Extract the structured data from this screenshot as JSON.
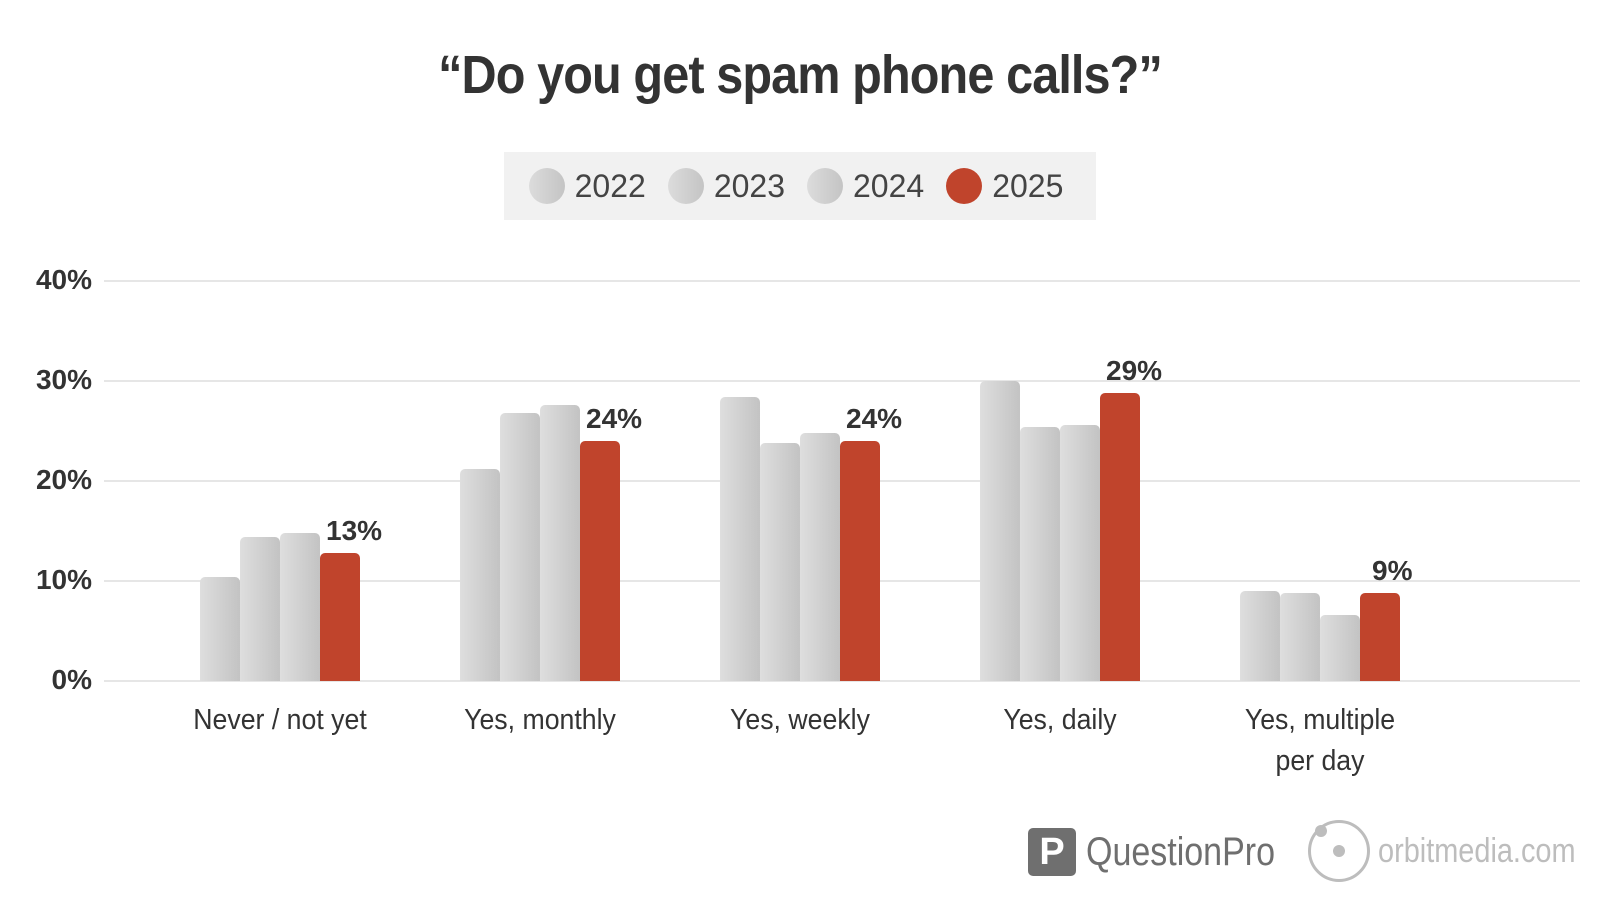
{
  "header": {
    "title": "“Do you get spam phone calls?”"
  },
  "legend": {
    "items": [
      {
        "label": "2022",
        "color": "#cfcfcf"
      },
      {
        "label": "2023",
        "color": "#cfcfcf"
      },
      {
        "label": "2024",
        "color": "#cfcfcf"
      },
      {
        "label": "2025",
        "color": "#c0442c"
      }
    ]
  },
  "axis": {
    "y_ticks": [
      "0%",
      "10%",
      "20%",
      "30%",
      "40%"
    ]
  },
  "categories": [
    {
      "label": "Never / not yet",
      "label2": "",
      "values": [
        10.4,
        14.4,
        14.8,
        12.8
      ],
      "highlight_label": "13%"
    },
    {
      "label": "Yes, monthly",
      "label2": "",
      "values": [
        21.2,
        26.8,
        27.6,
        24.0
      ],
      "highlight_label": "24%"
    },
    {
      "label": "Yes, weekly",
      "label2": "",
      "values": [
        28.4,
        23.8,
        24.8,
        24.0
      ],
      "highlight_label": "24%"
    },
    {
      "label": "Yes, daily",
      "label2": "",
      "values": [
        30.0,
        25.4,
        25.6,
        28.8
      ],
      "highlight_label": "29%"
    },
    {
      "label": "Yes, multiple",
      "label2": "per day",
      "values": [
        9.0,
        8.8,
        6.6,
        8.8
      ],
      "highlight_label": "9%"
    }
  ],
  "footer": {
    "logo1": "QuestionPro",
    "logo1_mark": "P",
    "logo2": "orbitmedia.com"
  },
  "colors": {
    "highlight": "#c0442c",
    "neutral": "#cfcfcf",
    "text": "#333333"
  },
  "chart_data": {
    "type": "bar",
    "title": "“Do you get spam phone calls?”",
    "categories": [
      "Never / not yet",
      "Yes, monthly",
      "Yes, weekly",
      "Yes, daily",
      "Yes, multiple per day"
    ],
    "series": [
      {
        "name": "2022",
        "values": [
          10.4,
          21.2,
          28.4,
          30.0,
          9.0
        ]
      },
      {
        "name": "2023",
        "values": [
          14.4,
          26.8,
          23.8,
          25.4,
          8.8
        ]
      },
      {
        "name": "2024",
        "values": [
          14.8,
          27.6,
          24.8,
          25.6,
          6.6
        ]
      },
      {
        "name": "2025",
        "values": [
          12.8,
          24.0,
          24.0,
          28.8,
          8.8
        ]
      }
    ],
    "data_labels": {
      "2025": [
        "13%",
        "24%",
        "24%",
        "29%",
        "9%"
      ]
    },
    "xlabel": "",
    "ylabel": "",
    "ylim": [
      0,
      40
    ],
    "y_ticks": [
      "0%",
      "10%",
      "20%",
      "30%",
      "40%"
    ],
    "grid": true,
    "legend_position": "top"
  }
}
